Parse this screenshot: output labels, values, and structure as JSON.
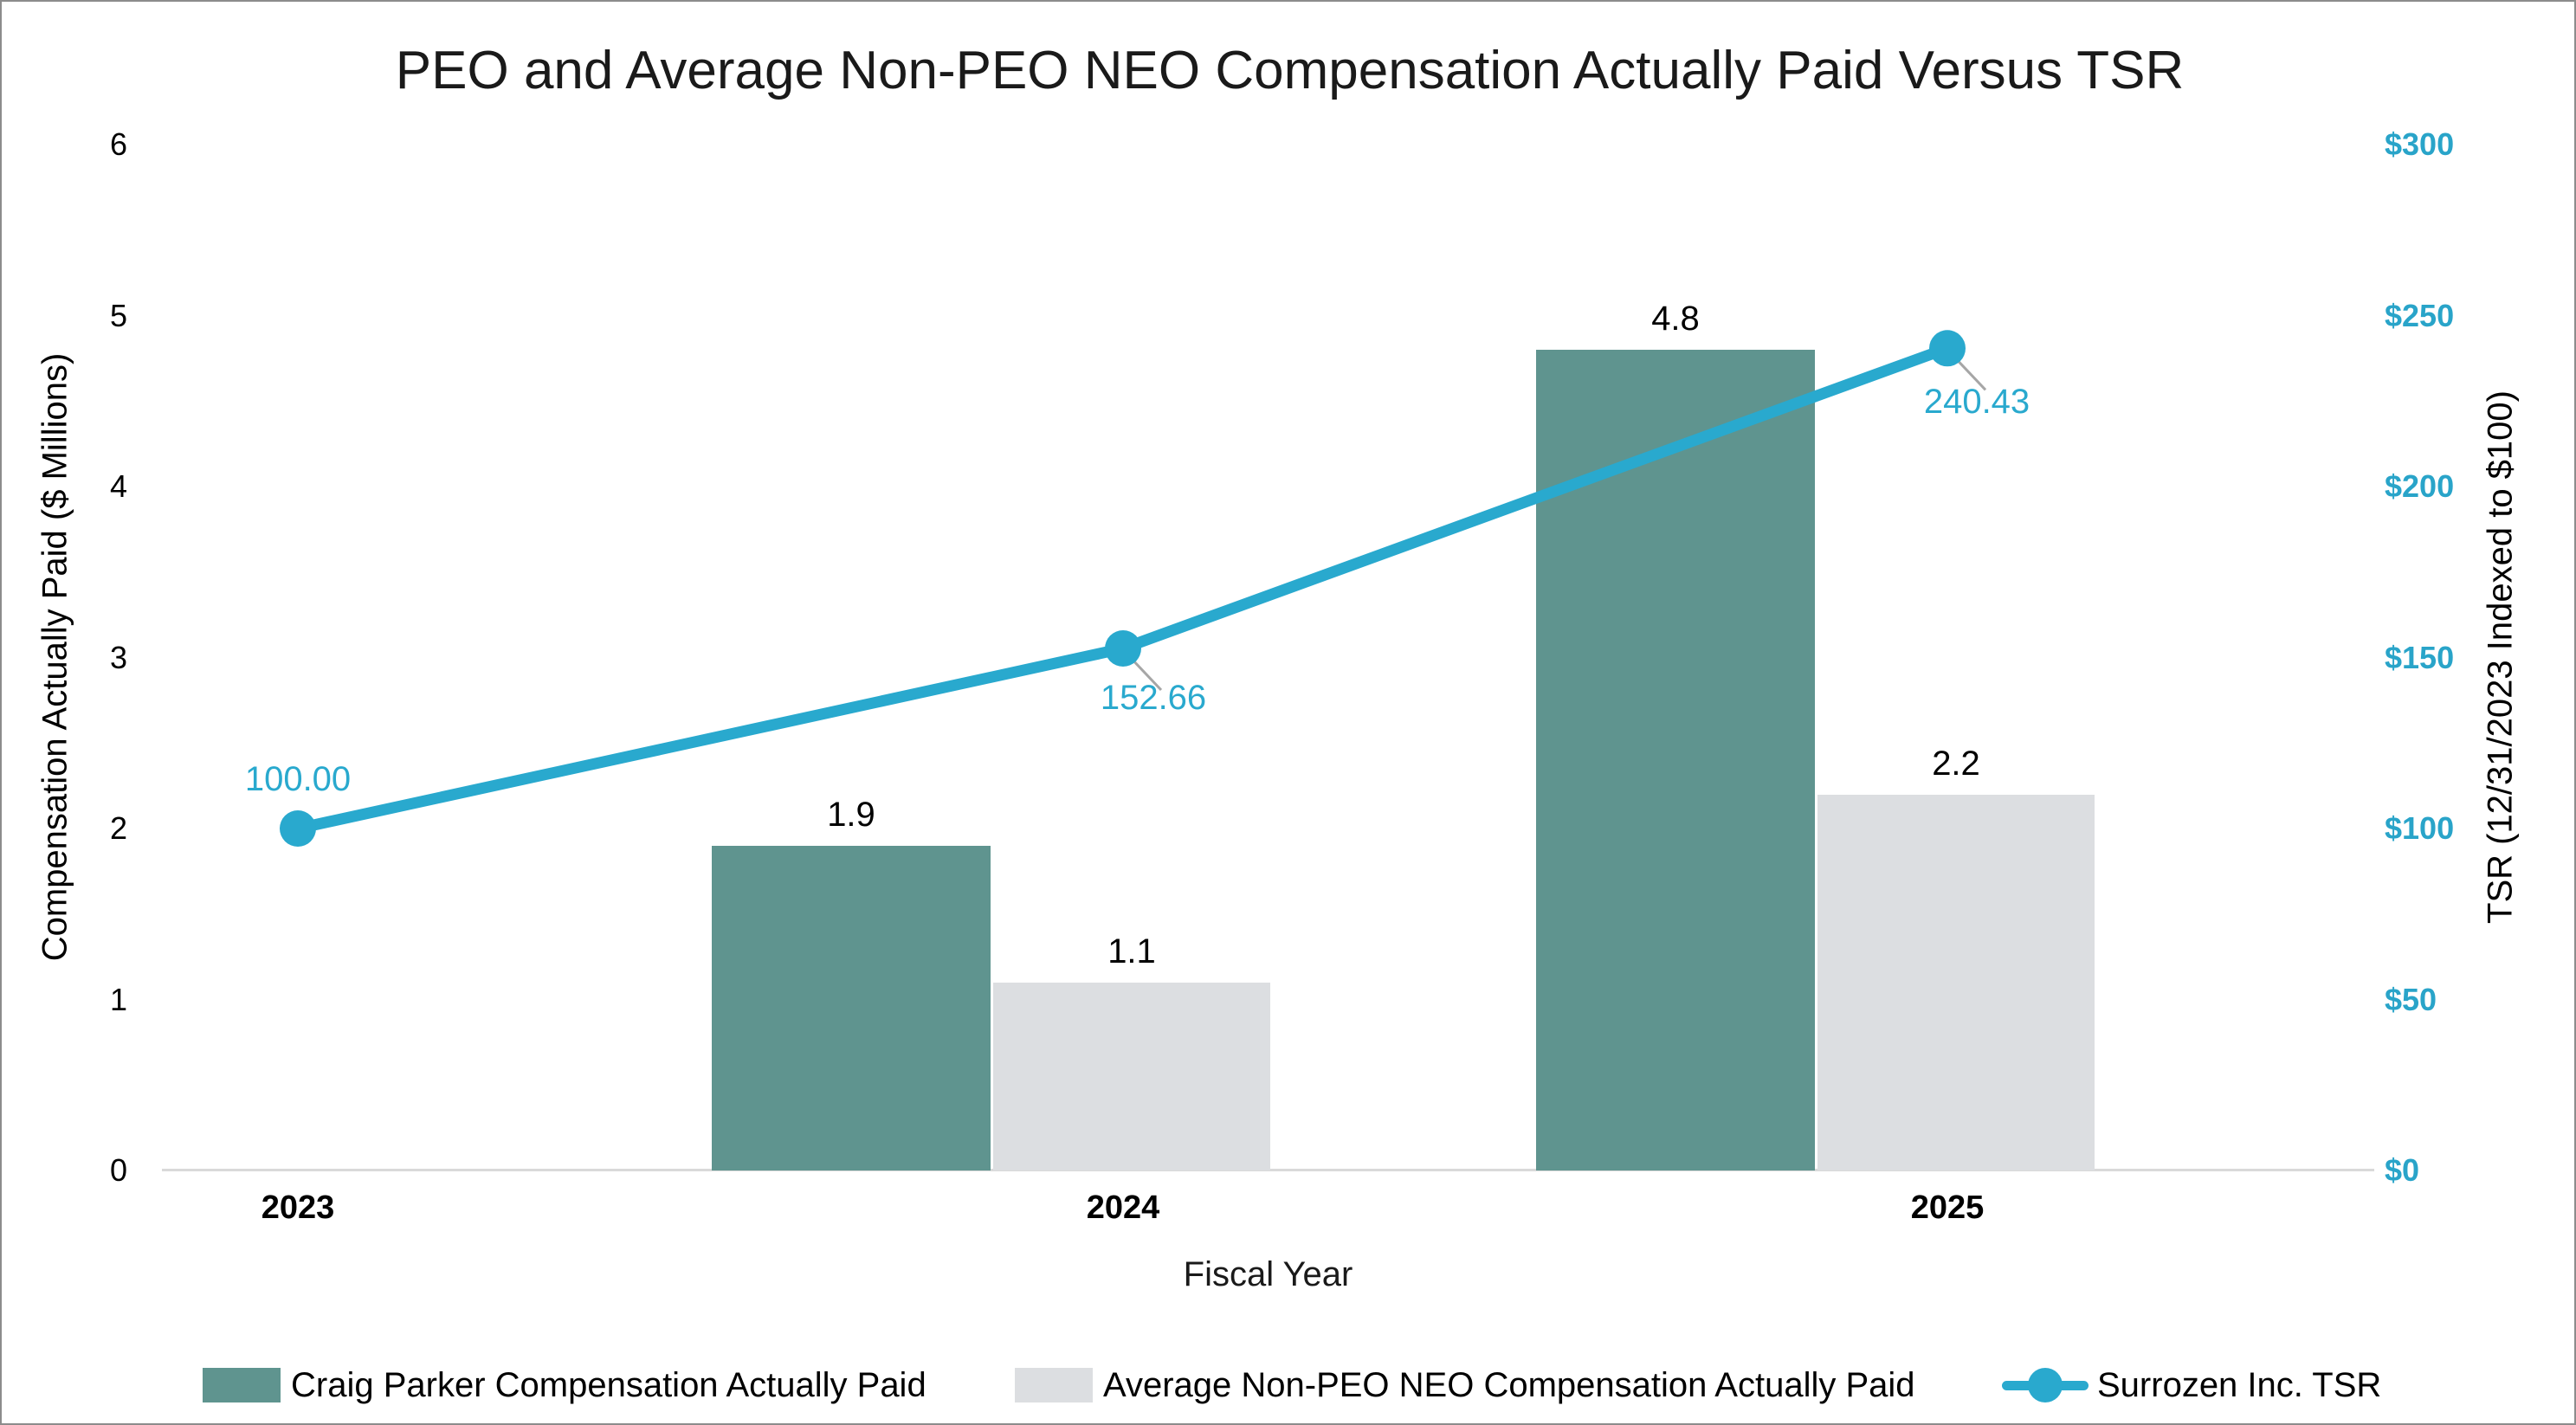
{
  "chart_data": {
    "type": "combo-bar-line",
    "title": "PEO and Average Non-PEO NEO Compensation Actually Paid Versus TSR",
    "x_axis": {
      "label": "Fiscal Year",
      "categories": [
        "2023",
        "2024",
        "2025"
      ]
    },
    "y_left": {
      "label": "Compensation Actually Paid ($ Millions)",
      "min": 0,
      "max": 6,
      "tick_step": 1,
      "ticks": [
        "0",
        "1",
        "2",
        "3",
        "4",
        "5",
        "6"
      ]
    },
    "y_right": {
      "label": "TSR (12/31/2023 Indexed to $100)",
      "min": 0,
      "max": 300,
      "tick_step": 50,
      "ticks": [
        "$0",
        "$50",
        "$100",
        "$150",
        "$200",
        "$250",
        "$300"
      ],
      "tick_color": "#29a4c9"
    },
    "bar_series": [
      {
        "name": "Craig Parker Compensation Actually Paid",
        "color": "#5f948f",
        "values": [
          null,
          1.9,
          4.8
        ],
        "labels": [
          "",
          "1.9",
          "4.8"
        ]
      },
      {
        "name": "Average Non-PEO NEO Compensation Actually Paid",
        "color": "#dcdee1",
        "values": [
          null,
          1.1,
          2.2
        ],
        "labels": [
          "",
          "1.1",
          "2.2"
        ]
      }
    ],
    "line_series": {
      "name": "Surrozen Inc. TSR",
      "color": "#29a9ce",
      "values": [
        100,
        152.66,
        240.43
      ],
      "labels": [
        "100.00",
        "152.66",
        "240.43"
      ]
    },
    "colors": {
      "axis_line": "#d9d9d9",
      "leader_line": "#a6a6a6",
      "border": "#8c8c8c"
    },
    "legend_position": "bottom",
    "grid": "off"
  }
}
